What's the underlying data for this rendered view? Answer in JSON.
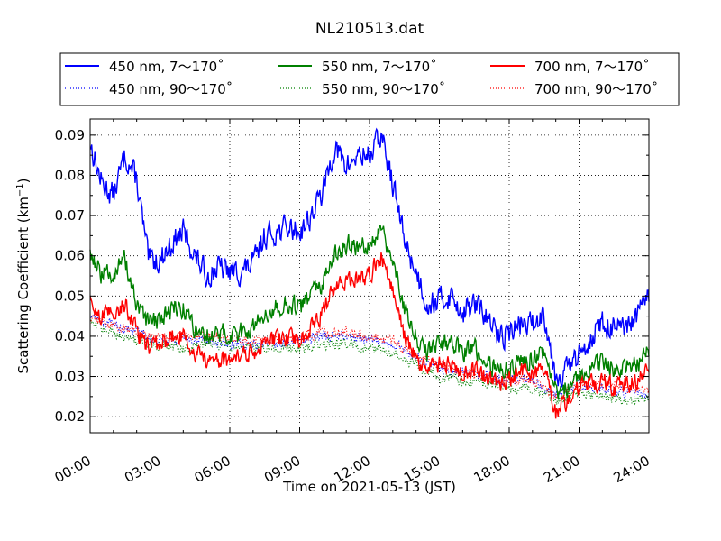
{
  "chart_data": {
    "type": "line",
    "title": "NL210513.dat",
    "xlabel": "Time on 2021-05-13 (JST)",
    "ylabel": "Scattering Coefficient (km",
    "ylabel_sup": "−1",
    "ylabel_close": ")",
    "xlim": [
      "00:00",
      "24:00"
    ],
    "ylim": [
      0.016,
      0.094
    ],
    "grid": true,
    "legend_position": "top",
    "x_ticks": [
      "00:00",
      "03:00",
      "06:00",
      "09:00",
      "12:00",
      "15:00",
      "18:00",
      "21:00",
      "24:00"
    ],
    "y_ticks": [
      "0.02",
      "0.03",
      "0.04",
      "0.05",
      "0.06",
      "0.07",
      "0.08",
      "0.09"
    ],
    "series": [
      {
        "name": "450 nm, 7～170˚",
        "color": "#0000ff",
        "style": "solid",
        "noise": 0.0028,
        "x": [
          0,
          0.5,
          1,
          1.5,
          2,
          2.5,
          3,
          3.5,
          4,
          4.5,
          5,
          5.5,
          6,
          6.5,
          7,
          7.5,
          8,
          8.5,
          9,
          9.5,
          10,
          10.5,
          11,
          11.5,
          12,
          12.5,
          13,
          13.5,
          14,
          14.5,
          15,
          15.5,
          16,
          16.5,
          17,
          17.5,
          18,
          18.5,
          19,
          19.5,
          20,
          20.5,
          21,
          21.5,
          22,
          22.5,
          23,
          23.5,
          24
        ],
        "y": [
          0.088,
          0.078,
          0.075,
          0.085,
          0.079,
          0.059,
          0.059,
          0.063,
          0.066,
          0.06,
          0.055,
          0.057,
          0.056,
          0.056,
          0.058,
          0.065,
          0.066,
          0.067,
          0.066,
          0.07,
          0.076,
          0.087,
          0.082,
          0.085,
          0.085,
          0.09,
          0.078,
          0.064,
          0.056,
          0.048,
          0.049,
          0.05,
          0.046,
          0.048,
          0.045,
          0.04,
          0.041,
          0.043,
          0.043,
          0.046,
          0.03,
          0.032,
          0.035,
          0.04,
          0.043,
          0.042,
          0.041,
          0.045,
          0.05
        ]
      },
      {
        "name": "550 nm, 7～170˚",
        "color": "#008000",
        "style": "solid",
        "noise": 0.0022,
        "x": [
          0,
          0.5,
          1,
          1.5,
          2,
          2.5,
          3,
          3.5,
          4,
          4.5,
          5,
          5.5,
          6,
          6.5,
          7,
          7.5,
          8,
          8.5,
          9,
          9.5,
          10,
          10.5,
          11,
          11.5,
          12,
          12.5,
          13,
          13.5,
          14,
          14.5,
          15,
          15.5,
          16,
          16.5,
          17,
          17.5,
          18,
          18.5,
          19,
          19.5,
          20,
          20.5,
          21,
          21.5,
          22,
          22.5,
          23,
          23.5,
          24
        ],
        "y": [
          0.061,
          0.055,
          0.056,
          0.059,
          0.047,
          0.043,
          0.044,
          0.047,
          0.047,
          0.042,
          0.04,
          0.041,
          0.04,
          0.041,
          0.042,
          0.046,
          0.047,
          0.048,
          0.047,
          0.05,
          0.053,
          0.06,
          0.063,
          0.062,
          0.063,
          0.067,
          0.058,
          0.047,
          0.04,
          0.036,
          0.038,
          0.038,
          0.036,
          0.037,
          0.034,
          0.031,
          0.032,
          0.034,
          0.034,
          0.036,
          0.026,
          0.027,
          0.03,
          0.032,
          0.034,
          0.032,
          0.032,
          0.033,
          0.036
        ]
      },
      {
        "name": "700 nm, 7～170˚",
        "color": "#ff0000",
        "style": "solid",
        "noise": 0.002,
        "x": [
          0,
          0.5,
          1,
          1.5,
          2,
          2.5,
          3,
          3.5,
          4,
          4.5,
          5,
          5.5,
          6,
          6.5,
          7,
          7.5,
          8,
          8.5,
          9,
          9.5,
          10,
          10.5,
          11,
          11.5,
          12,
          12.5,
          13,
          13.5,
          14,
          14.5,
          15,
          15.5,
          16,
          16.5,
          17,
          17.5,
          18,
          18.5,
          19,
          19.5,
          20,
          20.5,
          21,
          21.5,
          22,
          22.5,
          23,
          23.5,
          24
        ],
        "y": [
          0.048,
          0.045,
          0.046,
          0.048,
          0.041,
          0.037,
          0.038,
          0.04,
          0.04,
          0.036,
          0.034,
          0.034,
          0.034,
          0.035,
          0.036,
          0.039,
          0.039,
          0.04,
          0.039,
          0.042,
          0.046,
          0.052,
          0.054,
          0.054,
          0.055,
          0.06,
          0.052,
          0.04,
          0.034,
          0.032,
          0.033,
          0.033,
          0.031,
          0.032,
          0.03,
          0.028,
          0.029,
          0.031,
          0.031,
          0.032,
          0.021,
          0.024,
          0.027,
          0.028,
          0.029,
          0.027,
          0.028,
          0.029,
          0.032
        ]
      },
      {
        "name": "450 nm, 90～170˚",
        "color": "#0000ff",
        "style": "dotted",
        "noise": 0.0012,
        "x": [
          0,
          1,
          2,
          3,
          4,
          5,
          6,
          7,
          8,
          9,
          10,
          11,
          12,
          13,
          14,
          15,
          16,
          17,
          18,
          19,
          20,
          20.5,
          21,
          22,
          23,
          24
        ],
        "y": [
          0.045,
          0.043,
          0.041,
          0.039,
          0.039,
          0.039,
          0.038,
          0.038,
          0.038,
          0.039,
          0.04,
          0.04,
          0.039,
          0.038,
          0.035,
          0.032,
          0.031,
          0.03,
          0.029,
          0.029,
          0.025,
          0.027,
          0.028,
          0.027,
          0.026,
          0.026
        ]
      },
      {
        "name": "550 nm, 90～170˚",
        "color": "#008000",
        "style": "dotted",
        "noise": 0.0012,
        "x": [
          0,
          1,
          2,
          3,
          4,
          5,
          6,
          7,
          8,
          9,
          10,
          11,
          12,
          13,
          14,
          15,
          16,
          17,
          18,
          19,
          20,
          20.5,
          21,
          22,
          23,
          24
        ],
        "y": [
          0.043,
          0.041,
          0.039,
          0.038,
          0.037,
          0.038,
          0.037,
          0.037,
          0.037,
          0.037,
          0.038,
          0.038,
          0.037,
          0.036,
          0.033,
          0.03,
          0.029,
          0.028,
          0.027,
          0.027,
          0.024,
          0.025,
          0.026,
          0.025,
          0.024,
          0.024
        ]
      },
      {
        "name": "700 nm, 90～170˚",
        "color": "#ff0000",
        "style": "dotted",
        "noise": 0.0012,
        "x": [
          0,
          1,
          2,
          3,
          4,
          5,
          6,
          7,
          8,
          9,
          10,
          11,
          12,
          13,
          14,
          15,
          16,
          17,
          18,
          19,
          20,
          20.5,
          21,
          22,
          23,
          24
        ],
        "y": [
          0.044,
          0.043,
          0.041,
          0.04,
          0.04,
          0.04,
          0.039,
          0.039,
          0.039,
          0.04,
          0.041,
          0.041,
          0.04,
          0.039,
          0.035,
          0.033,
          0.031,
          0.03,
          0.029,
          0.029,
          0.025,
          0.027,
          0.028,
          0.028,
          0.027,
          0.027
        ]
      }
    ]
  }
}
